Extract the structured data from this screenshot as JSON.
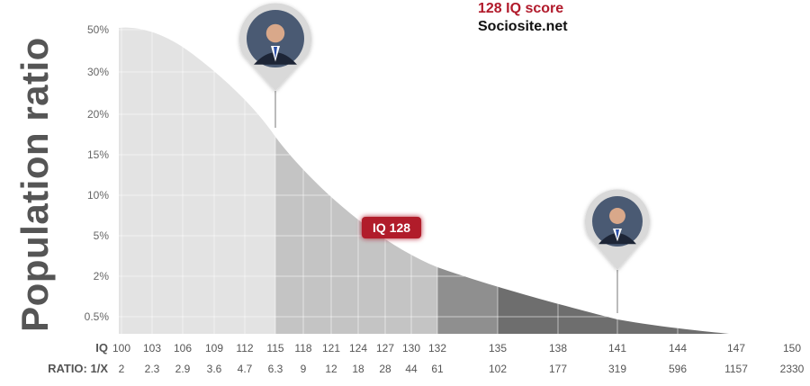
{
  "chart_data": {
    "type": "area",
    "title": "128 IQ score",
    "subtitle": "Sociosite.net",
    "ylabel": "Population ratio",
    "x_row_label": "IQ",
    "ratio_row_label": "RATIO: 1/X",
    "y_ticks": [
      "50%",
      "30%",
      "20%",
      "15%",
      "10%",
      "5%",
      "2%",
      "0.5%"
    ],
    "x": [
      100,
      103,
      106,
      109,
      112,
      115,
      118,
      121,
      124,
      127,
      130,
      132,
      135,
      138,
      141,
      144,
      147,
      150
    ],
    "ratio": [
      "2",
      "2.3",
      "2.9",
      "3.6",
      "4.7",
      "6.3",
      "9",
      "12",
      "18",
      "28",
      "44",
      "61",
      "102",
      "177",
      "319",
      "596",
      "1157",
      "2330"
    ],
    "shaded_bands": [
      {
        "from": 100,
        "to": 115,
        "color": "#e3e3e3"
      },
      {
        "from": 115,
        "to": 132,
        "color": "#c4c4c4"
      },
      {
        "from": 132,
        "to": 135,
        "color": "#8f8f8f"
      },
      {
        "from": 135,
        "to": 150,
        "color": "#6e6e6e"
      }
    ],
    "highlight": {
      "label": "IQ 128",
      "x": 128,
      "color": "#b11a2b"
    },
    "markers": [
      {
        "name": "portrait-marker-left",
        "x": 115
      },
      {
        "name": "portrait-marker-right",
        "x": 141
      }
    ],
    "grid": true
  }
}
